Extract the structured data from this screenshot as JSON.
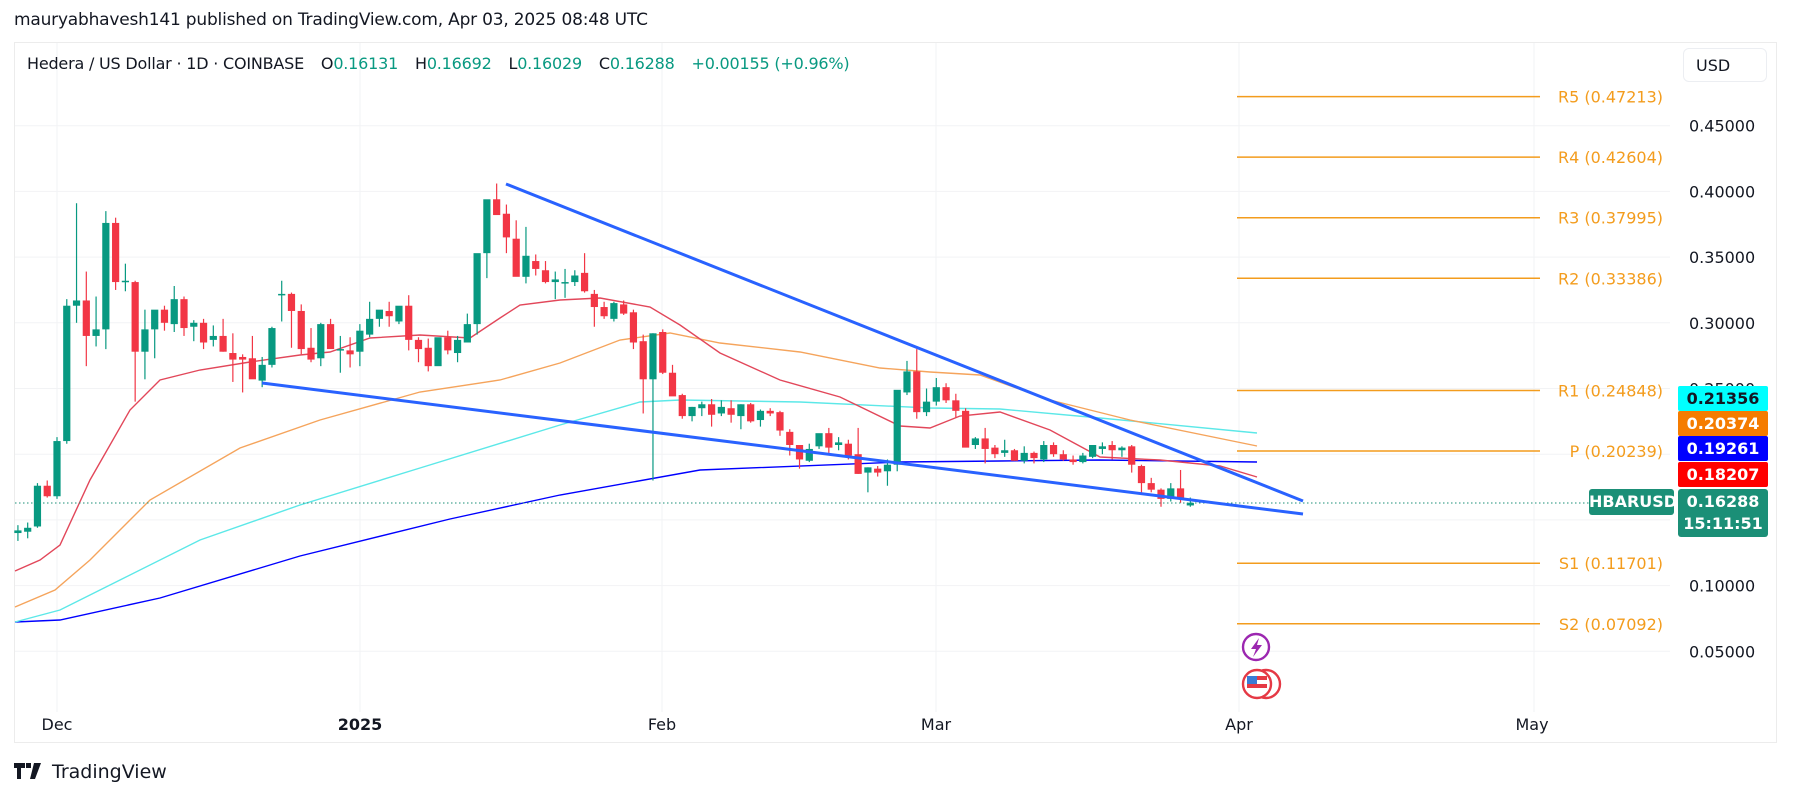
{
  "header": {
    "publisher_line": "mauryabhavesh141 published on TradingView.com, Apr 03, 2025 08:48 UTC"
  },
  "legend": {
    "symbol": "Hedera / US Dollar · 1D · COINBASE",
    "o_label": "O",
    "o_value": "0.16131",
    "h_label": "H",
    "h_value": "0.16692",
    "l_label": "L",
    "l_value": "0.16029",
    "c_label": "C",
    "c_value": "0.16288",
    "change": "+0.00155 (+0.96%)"
  },
  "price_axis": {
    "currency": "USD",
    "ticks": [
      "0.45000",
      "0.40000",
      "0.35000",
      "0.30000",
      "0.25000",
      "0.10000",
      "0.05000"
    ]
  },
  "time_axis": {
    "ticks": [
      "Dec",
      "2025",
      "Feb",
      "Mar",
      "Apr",
      "May"
    ]
  },
  "price_tags": {
    "ma_cyan": "0.21356",
    "ma_orange": "0.20374",
    "ma_blue": "0.19261",
    "ma_red": "0.18207",
    "symbol_tag": "HBARUSD",
    "last_price": "0.16288",
    "countdown": "15:11:51"
  },
  "pivots": [
    {
      "label": "R5 (0.47213)",
      "value": 0.47213
    },
    {
      "label": "R4 (0.42604)",
      "value": 0.42604
    },
    {
      "label": "R3 (0.37995)",
      "value": 0.37995
    },
    {
      "label": "R2 (0.33386)",
      "value": 0.33386
    },
    {
      "label": "R1 (0.24848)",
      "value": 0.24848
    },
    {
      "label": "P (0.20239)",
      "value": 0.20239
    },
    {
      "label": "S1 (0.11701)",
      "value": 0.11701
    },
    {
      "label": "S2 (0.07092)",
      "value": 0.07092
    }
  ],
  "colors": {
    "up": "#089981",
    "down": "#f23645",
    "ma_red": "#ff0000",
    "ma_orange": "#f57c00",
    "ma_cyan": "#00ffff",
    "ma_blue": "#0000ff",
    "trendline": "#2962ff",
    "pivot": "#f39c1d",
    "last": "#1b8f77"
  },
  "footer": {
    "brand": "TradingView"
  },
  "chart_data": {
    "type": "candlestick",
    "title": "Hedera / US Dollar · 1D · COINBASE",
    "xlabel": "",
    "ylabel": "USD",
    "ylim": [
      0.02,
      0.49
    ],
    "x_ticks": [
      "Dec",
      "2025",
      "Feb",
      "Mar",
      "Apr",
      "May"
    ],
    "y_ticks": [
      0.05,
      0.1,
      0.25,
      0.3,
      0.35,
      0.4,
      0.45
    ],
    "grid": true,
    "start_date": "2024-11-27",
    "candles_ohlc": [
      [
        0.14,
        0.146,
        0.134,
        0.142
      ],
      [
        0.141,
        0.148,
        0.136,
        0.144
      ],
      [
        0.145,
        0.178,
        0.144,
        0.176
      ],
      [
        0.176,
        0.18,
        0.167,
        0.168
      ],
      [
        0.168,
        0.213,
        0.166,
        0.21
      ],
      [
        0.21,
        0.318,
        0.208,
        0.313
      ],
      [
        0.313,
        0.391,
        0.3,
        0.317
      ],
      [
        0.317,
        0.339,
        0.267,
        0.29
      ],
      [
        0.29,
        0.32,
        0.282,
        0.295
      ],
      [
        0.295,
        0.385,
        0.28,
        0.376
      ],
      [
        0.376,
        0.38,
        0.325,
        0.331
      ],
      [
        0.331,
        0.345,
        0.324,
        0.332
      ],
      [
        0.331,
        0.332,
        0.24,
        0.278
      ],
      [
        0.278,
        0.31,
        0.257,
        0.295
      ],
      [
        0.295,
        0.305,
        0.273,
        0.31
      ],
      [
        0.31,
        0.313,
        0.294,
        0.3
      ],
      [
        0.299,
        0.328,
        0.293,
        0.318
      ],
      [
        0.318,
        0.32,
        0.29,
        0.296
      ],
      [
        0.297,
        0.302,
        0.286,
        0.3
      ],
      [
        0.3,
        0.303,
        0.28,
        0.285
      ],
      [
        0.287,
        0.298,
        0.282,
        0.29
      ],
      [
        0.29,
        0.303,
        0.278,
        0.278
      ],
      [
        0.277,
        0.292,
        0.255,
        0.272
      ],
      [
        0.274,
        0.276,
        0.247,
        0.272
      ],
      [
        0.273,
        0.29,
        0.262,
        0.257
      ],
      [
        0.256,
        0.274,
        0.251,
        0.268
      ],
      [
        0.268,
        0.297,
        0.266,
        0.296
      ],
      [
        0.322,
        0.332,
        0.301,
        0.322
      ],
      [
        0.322,
        0.323,
        0.281,
        0.309
      ],
      [
        0.309,
        0.314,
        0.276,
        0.28
      ],
      [
        0.281,
        0.296,
        0.27,
        0.272
      ],
      [
        0.273,
        0.3,
        0.267,
        0.299
      ],
      [
        0.299,
        0.303,
        0.283,
        0.28
      ],
      [
        0.279,
        0.29,
        0.262,
        0.28
      ],
      [
        0.279,
        0.289,
        0.266,
        0.276
      ],
      [
        0.278,
        0.299,
        0.267,
        0.294
      ],
      [
        0.291,
        0.316,
        0.289,
        0.303
      ],
      [
        0.303,
        0.308,
        0.297,
        0.31
      ],
      [
        0.309,
        0.316,
        0.297,
        0.305
      ],
      [
        0.301,
        0.312,
        0.299,
        0.313
      ],
      [
        0.313,
        0.321,
        0.279,
        0.287
      ],
      [
        0.287,
        0.289,
        0.27,
        0.28
      ],
      [
        0.281,
        0.288,
        0.263,
        0.267
      ],
      [
        0.267,
        0.287,
        0.272,
        0.289
      ],
      [
        0.289,
        0.294,
        0.276,
        0.279
      ],
      [
        0.277,
        0.29,
        0.27,
        0.287
      ],
      [
        0.285,
        0.307,
        0.295,
        0.299
      ],
      [
        0.299,
        0.35,
        0.291,
        0.353
      ],
      [
        0.353,
        0.385,
        0.334,
        0.394
      ],
      [
        0.394,
        0.406,
        0.383,
        0.382
      ],
      [
        0.383,
        0.39,
        0.353,
        0.365
      ],
      [
        0.364,
        0.378,
        0.345,
        0.335
      ],
      [
        0.335,
        0.373,
        0.33,
        0.351
      ],
      [
        0.347,
        0.352,
        0.336,
        0.341
      ],
      [
        0.34,
        0.347,
        0.33,
        0.331
      ],
      [
        0.331,
        0.339,
        0.318,
        0.333
      ],
      [
        0.331,
        0.341,
        0.319,
        0.331
      ],
      [
        0.331,
        0.34,
        0.328,
        0.336
      ],
      [
        0.338,
        0.353,
        0.323,
        0.324
      ],
      [
        0.322,
        0.325,
        0.297,
        0.312
      ],
      [
        0.312,
        0.316,
        0.303,
        0.305
      ],
      [
        0.303,
        0.316,
        0.301,
        0.315
      ],
      [
        0.314,
        0.317,
        0.306,
        0.307
      ],
      [
        0.308,
        0.31,
        0.28,
        0.285
      ],
      [
        0.286,
        0.291,
        0.231,
        0.257
      ],
      [
        0.257,
        0.292,
        0.18,
        0.292
      ],
      [
        0.293,
        0.295,
        0.261,
        0.262
      ],
      [
        0.262,
        0.268,
        0.25,
        0.244
      ],
      [
        0.245,
        0.246,
        0.227,
        0.229
      ],
      [
        0.229,
        0.236,
        0.225,
        0.236
      ],
      [
        0.235,
        0.24,
        0.229,
        0.238
      ],
      [
        0.238,
        0.242,
        0.221,
        0.23
      ],
      [
        0.231,
        0.241,
        0.229,
        0.236
      ],
      [
        0.235,
        0.241,
        0.224,
        0.23
      ],
      [
        0.229,
        0.238,
        0.219,
        0.238
      ],
      [
        0.238,
        0.239,
        0.224,
        0.225
      ],
      [
        0.226,
        0.234,
        0.221,
        0.233
      ],
      [
        0.233,
        0.235,
        0.229,
        0.231
      ],
      [
        0.232,
        0.233,
        0.214,
        0.218
      ],
      [
        0.217,
        0.219,
        0.199,
        0.207
      ],
      [
        0.207,
        0.207,
        0.189,
        0.196
      ],
      [
        0.195,
        0.208,
        0.194,
        0.204
      ],
      [
        0.206,
        0.215,
        0.204,
        0.216
      ],
      [
        0.216,
        0.22,
        0.201,
        0.205
      ],
      [
        0.207,
        0.213,
        0.203,
        0.209
      ],
      [
        0.208,
        0.211,
        0.196,
        0.199
      ],
      [
        0.2,
        0.22,
        0.185,
        0.185
      ],
      [
        0.186,
        0.19,
        0.171,
        0.19
      ],
      [
        0.189,
        0.191,
        0.183,
        0.186
      ],
      [
        0.187,
        0.196,
        0.176,
        0.192
      ],
      [
        0.192,
        0.212,
        0.187,
        0.249
      ],
      [
        0.247,
        0.271,
        0.245,
        0.263
      ],
      [
        0.263,
        0.28,
        0.227,
        0.232
      ],
      [
        0.232,
        0.25,
        0.229,
        0.24
      ],
      [
        0.24,
        0.258,
        0.237,
        0.251
      ],
      [
        0.251,
        0.254,
        0.239,
        0.241
      ],
      [
        0.241,
        0.246,
        0.228,
        0.233
      ],
      [
        0.233,
        0.235,
        0.208,
        0.205
      ],
      [
        0.207,
        0.213,
        0.204,
        0.212
      ],
      [
        0.212,
        0.22,
        0.193,
        0.204
      ],
      [
        0.205,
        0.207,
        0.197,
        0.2
      ],
      [
        0.201,
        0.211,
        0.198,
        0.203
      ],
      [
        0.203,
        0.204,
        0.195,
        0.195
      ],
      [
        0.195,
        0.206,
        0.193,
        0.201
      ],
      [
        0.201,
        0.202,
        0.193,
        0.197
      ],
      [
        0.196,
        0.21,
        0.194,
        0.207
      ],
      [
        0.207,
        0.209,
        0.198,
        0.2
      ],
      [
        0.2,
        0.203,
        0.195,
        0.196
      ],
      [
        0.196,
        0.199,
        0.192,
        0.194
      ],
      [
        0.194,
        0.201,
        0.193,
        0.199
      ],
      [
        0.198,
        0.207,
        0.197,
        0.207
      ],
      [
        0.204,
        0.209,
        0.2,
        0.206
      ],
      [
        0.207,
        0.21,
        0.196,
        0.203
      ],
      [
        0.203,
        0.206,
        0.198,
        0.205
      ],
      [
        0.206,
        0.207,
        0.186,
        0.192
      ],
      [
        0.191,
        0.192,
        0.17,
        0.178
      ],
      [
        0.178,
        0.182,
        0.171,
        0.173
      ],
      [
        0.173,
        0.174,
        0.16,
        0.166
      ],
      [
        0.166,
        0.178,
        0.164,
        0.174
      ],
      [
        0.174,
        0.188,
        0.163,
        0.166
      ],
      [
        0.161,
        0.167,
        0.16,
        0.163
      ]
    ],
    "moving_averages": [
      {
        "name": "MA red",
        "color": "#ff0000",
        "last": 0.18207
      },
      {
        "name": "MA orange",
        "color": "#f57c00",
        "last": 0.20374
      },
      {
        "name": "MA cyan",
        "color": "#00ffff",
        "last": 0.21356
      },
      {
        "name": "MA blue",
        "color": "#0000ff",
        "last": 0.19261
      }
    ],
    "trendlines": [
      {
        "name": "upper",
        "from": [
          "2025-01-16",
          0.405
        ],
        "to": [
          "2025-04-08",
          0.165
        ]
      },
      {
        "name": "lower",
        "from": [
          "2024-12-20",
          0.255
        ],
        "to": [
          "2025-04-08",
          0.155
        ]
      }
    ],
    "last_price": 0.16288,
    "annotations": [
      "HBARUSD 0.16288",
      "15:11:51"
    ]
  }
}
